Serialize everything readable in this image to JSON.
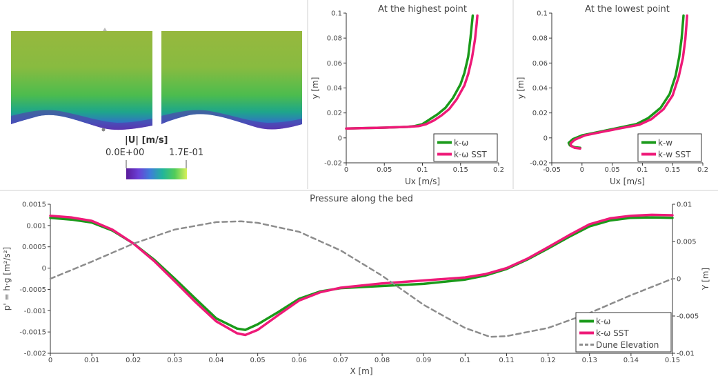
{
  "colors": {
    "k_omega": "#1a9a1a",
    "k_omega_sst": "#ee1a78",
    "dune": "#8c8c8c",
    "colormap": [
      "#5a1a8a",
      "#6a3fd6",
      "#3d7fd8",
      "#22b59a",
      "#52cc5a",
      "#c6ee55"
    ]
  },
  "contour": {
    "colorbar_title": "|U|  [m/s]",
    "colorbar_min": "0.0E+00",
    "colorbar_max": "1.7E-01"
  },
  "chart_data": [
    {
      "id": "highest",
      "type": "line",
      "title": "At the highest point",
      "xlabel": "Ux [m/s]",
      "ylabel": "y [m]",
      "xlim": [
        0,
        0.2
      ],
      "ylim": [
        -0.02,
        0.1
      ],
      "x_ticks": [
        0,
        0.05,
        0.1,
        0.15,
        0.2
      ],
      "x_tick_labels": [
        "0",
        "0.05",
        "0.1",
        "0.15",
        "0.2"
      ],
      "y_ticks": [
        -0.02,
        0,
        0.02,
        0.04,
        0.06,
        0.08,
        0.1
      ],
      "y_tick_labels": [
        "-0.02",
        "0",
        "0.02",
        "0.04",
        "0.06",
        "0.08",
        "0.1"
      ],
      "legend_position": "bottom-right",
      "series": [
        {
          "name": "k-ω",
          "color_key": "k_omega",
          "points": [
            [
              0,
              0.0075
            ],
            [
              0.02,
              0.0078
            ],
            [
              0.05,
              0.0082
            ],
            [
              0.08,
              0.0088
            ],
            [
              0.09,
              0.0095
            ],
            [
              0.1,
              0.011
            ],
            [
              0.11,
              0.015
            ],
            [
              0.12,
              0.019
            ],
            [
              0.13,
              0.024
            ],
            [
              0.14,
              0.032
            ],
            [
              0.15,
              0.043
            ],
            [
              0.155,
              0.052
            ],
            [
              0.16,
              0.065
            ],
            [
              0.163,
              0.08
            ],
            [
              0.165,
              0.092
            ],
            [
              0.166,
              0.098
            ]
          ]
        },
        {
          "name": "k-ω SST",
          "color_key": "k_omega_sst",
          "points": [
            [
              0,
              0.0075
            ],
            [
              0.02,
              0.0078
            ],
            [
              0.05,
              0.0082
            ],
            [
              0.08,
              0.0088
            ],
            [
              0.095,
              0.0094
            ],
            [
              0.105,
              0.011
            ],
            [
              0.115,
              0.014
            ],
            [
              0.125,
              0.018
            ],
            [
              0.135,
              0.023
            ],
            [
              0.145,
              0.031
            ],
            [
              0.155,
              0.042
            ],
            [
              0.16,
              0.051
            ],
            [
              0.165,
              0.064
            ],
            [
              0.169,
              0.079
            ],
            [
              0.171,
              0.091
            ],
            [
              0.172,
              0.098
            ]
          ]
        }
      ]
    },
    {
      "id": "lowest",
      "type": "line",
      "title": "At the lowest point",
      "xlabel": "Ux [m/s]",
      "ylabel": "y [m]",
      "xlim": [
        -0.05,
        0.2
      ],
      "ylim": [
        -0.02,
        0.1
      ],
      "x_ticks": [
        -0.05,
        0,
        0.05,
        0.1,
        0.15,
        0.2
      ],
      "x_tick_labels": [
        "-0.05",
        "0",
        "0.05",
        "0.1",
        "0.15",
        "0.2"
      ],
      "y_ticks": [
        -0.02,
        0,
        0.02,
        0.04,
        0.06,
        0.08,
        0.1
      ],
      "y_tick_labels": [
        "-0.02",
        "0",
        "0.02",
        "0.04",
        "0.06",
        "0.08",
        "0.1"
      ],
      "legend_position": "bottom-right",
      "series": [
        {
          "name": "k-w",
          "color_key": "k_omega",
          "points": [
            [
              -0.003,
              -0.008
            ],
            [
              -0.012,
              -0.0075
            ],
            [
              -0.02,
              -0.006
            ],
            [
              -0.022,
              -0.004
            ],
            [
              -0.015,
              -0.001
            ],
            [
              0,
              0.002
            ],
            [
              0.03,
              0.005
            ],
            [
              0.06,
              0.008
            ],
            [
              0.09,
              0.011
            ],
            [
              0.11,
              0.016
            ],
            [
              0.13,
              0.024
            ],
            [
              0.145,
              0.035
            ],
            [
              0.155,
              0.05
            ],
            [
              0.161,
              0.065
            ],
            [
              0.165,
              0.08
            ],
            [
              0.167,
              0.092
            ],
            [
              0.168,
              0.098
            ]
          ]
        },
        {
          "name": "k-w SST",
          "color_key": "k_omega_sst",
          "points": [
            [
              -0.003,
              -0.0085
            ],
            [
              -0.012,
              -0.008
            ],
            [
              -0.018,
              -0.0065
            ],
            [
              -0.019,
              -0.0045
            ],
            [
              -0.012,
              -0.0015
            ],
            [
              0.005,
              0.002
            ],
            [
              0.035,
              0.005
            ],
            [
              0.065,
              0.0078
            ],
            [
              0.095,
              0.0105
            ],
            [
              0.115,
              0.015
            ],
            [
              0.135,
              0.023
            ],
            [
              0.15,
              0.034
            ],
            [
              0.16,
              0.049
            ],
            [
              0.167,
              0.064
            ],
            [
              0.171,
              0.079
            ],
            [
              0.173,
              0.091
            ],
            [
              0.174,
              0.098
            ]
          ]
        }
      ]
    },
    {
      "id": "pressure",
      "type": "line",
      "title": "Pressure along the bed",
      "xlabel": "X [m]",
      "ylabel": "p' = h·g [m²/s²]",
      "ylabel_right": "Y [m]",
      "xlim": [
        0,
        0.15
      ],
      "ylim": [
        -0.002,
        0.0015
      ],
      "ylim_right": [
        -0.01,
        0.01
      ],
      "x_ticks": [
        0,
        0.01,
        0.02,
        0.03,
        0.04,
        0.05,
        0.06,
        0.07,
        0.08,
        0.09,
        0.1,
        0.11,
        0.12,
        0.13,
        0.14,
        0.15
      ],
      "x_tick_labels": [
        "0",
        "0.01",
        "0.02",
        "0.03",
        "0.04",
        "0.05",
        "0.06",
        "0.07",
        "0.08",
        "0.09",
        "0.1",
        "0.11",
        "0.12",
        "0.13",
        "0.14",
        "0.15"
      ],
      "y_ticks": [
        -0.002,
        -0.0015,
        -0.001,
        -0.0005,
        0,
        0.0005,
        0.001,
        0.0015
      ],
      "y_tick_labels": [
        "-0.002",
        "-0.0015",
        "-0.001",
        "-0.0005",
        "0",
        "0.0005",
        "0.001",
        "0.0015"
      ],
      "y_ticks_right": [
        -0.01,
        -0.005,
        0,
        0.005,
        0.01
      ],
      "y_tick_labels_right": [
        "-0.01",
        "-0.005",
        "0",
        "0.005",
        "0.01"
      ],
      "legend_position": "bottom-right",
      "series": [
        {
          "name": "k-ω",
          "color_key": "k_omega",
          "axis": "left",
          "points": [
            [
              0,
              0.00118
            ],
            [
              0.005,
              0.00114
            ],
            [
              0.01,
              0.00107
            ],
            [
              0.015,
              0.00088
            ],
            [
              0.02,
              0.00058
            ],
            [
              0.025,
              0.0002
            ],
            [
              0.03,
              -0.00025
            ],
            [
              0.035,
              -0.00072
            ],
            [
              0.04,
              -0.00118
            ],
            [
              0.045,
              -0.00142
            ],
            [
              0.047,
              -0.00145
            ],
            [
              0.05,
              -0.00132
            ],
            [
              0.055,
              -0.00103
            ],
            [
              0.06,
              -0.00072
            ],
            [
              0.065,
              -0.00055
            ],
            [
              0.07,
              -0.00047
            ],
            [
              0.08,
              -0.00042
            ],
            [
              0.09,
              -0.00037
            ],
            [
              0.1,
              -0.00027
            ],
            [
              0.105,
              -0.00017
            ],
            [
              0.11,
              -2e-05
            ],
            [
              0.115,
              0.0002
            ],
            [
              0.12,
              0.00046
            ],
            [
              0.125,
              0.00073
            ],
            [
              0.13,
              0.00098
            ],
            [
              0.135,
              0.00112
            ],
            [
              0.14,
              0.00118
            ],
            [
              0.145,
              0.00119
            ],
            [
              0.15,
              0.00118
            ]
          ]
        },
        {
          "name": "k-ω SST",
          "color_key": "k_omega_sst",
          "axis": "left",
          "points": [
            [
              0,
              0.00123
            ],
            [
              0.005,
              0.00119
            ],
            [
              0.01,
              0.00111
            ],
            [
              0.015,
              0.0009
            ],
            [
              0.02,
              0.00058
            ],
            [
              0.025,
              0.00017
            ],
            [
              0.03,
              -0.00031
            ],
            [
              0.035,
              -0.0008
            ],
            [
              0.04,
              -0.00125
            ],
            [
              0.045,
              -0.00153
            ],
            [
              0.047,
              -0.00157
            ],
            [
              0.05,
              -0.00145
            ],
            [
              0.055,
              -0.0011
            ],
            [
              0.06,
              -0.00076
            ],
            [
              0.065,
              -0.00057
            ],
            [
              0.07,
              -0.00046
            ],
            [
              0.08,
              -0.00036
            ],
            [
              0.09,
              -0.00029
            ],
            [
              0.1,
              -0.00022
            ],
            [
              0.105,
              -0.00014
            ],
            [
              0.11,
              0.0
            ],
            [
              0.115,
              0.00022
            ],
            [
              0.12,
              0.00049
            ],
            [
              0.125,
              0.00077
            ],
            [
              0.13,
              0.00103
            ],
            [
              0.135,
              0.00117
            ],
            [
              0.14,
              0.00123
            ],
            [
              0.145,
              0.00125
            ],
            [
              0.15,
              0.00124
            ]
          ]
        },
        {
          "name": "Dune Elevation",
          "color_key": "dune",
          "axis": "right",
          "dashed": true,
          "points": [
            [
              0,
              0.0
            ],
            [
              0.01,
              0.0023
            ],
            [
              0.02,
              0.0047
            ],
            [
              0.03,
              0.0066
            ],
            [
              0.04,
              0.0076
            ],
            [
              0.046,
              0.0077
            ],
            [
              0.05,
              0.0075
            ],
            [
              0.06,
              0.0063
            ],
            [
              0.07,
              0.0038
            ],
            [
              0.08,
              0.0004
            ],
            [
              0.09,
              -0.0035
            ],
            [
              0.1,
              -0.0066
            ],
            [
              0.106,
              -0.0078
            ],
            [
              0.11,
              -0.0077
            ],
            [
              0.12,
              -0.0066
            ],
            [
              0.13,
              -0.0046
            ],
            [
              0.14,
              -0.0022
            ],
            [
              0.15,
              0.0
            ]
          ]
        }
      ]
    }
  ]
}
